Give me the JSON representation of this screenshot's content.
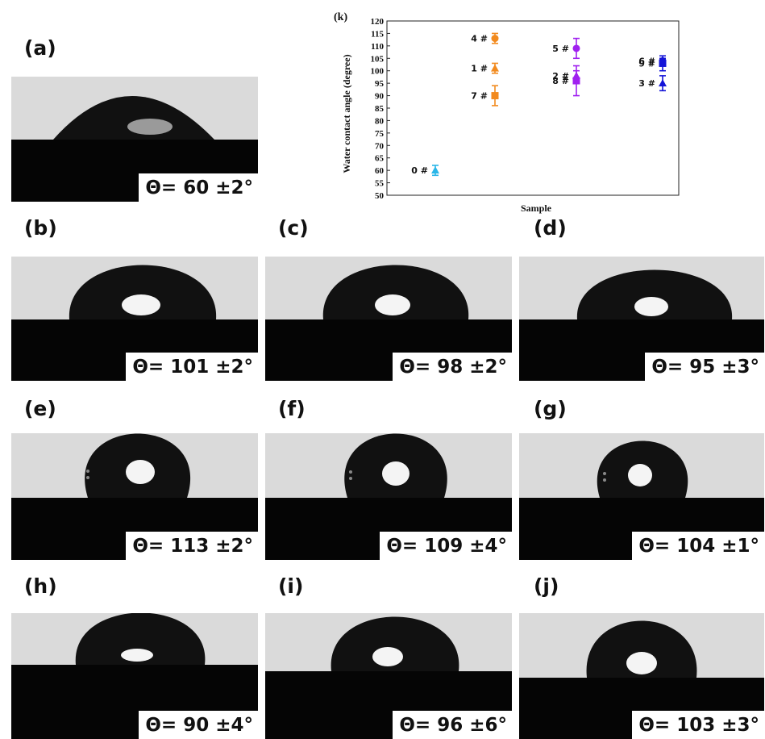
{
  "panels": [
    {
      "id": "a",
      "label": "(a)",
      "angle": "Θ= 60 ±2°",
      "contact_angle": 60
    },
    {
      "id": "b",
      "label": "(b)",
      "angle": "Θ= 101 ±2°",
      "contact_angle": 101
    },
    {
      "id": "c",
      "label": "(c)",
      "angle": "Θ= 98 ±2°",
      "contact_angle": 98
    },
    {
      "id": "d",
      "label": "(d)",
      "angle": "Θ= 95 ±3°",
      "contact_angle": 95
    },
    {
      "id": "e",
      "label": "(e)",
      "angle": "Θ= 113 ±2°",
      "contact_angle": 113
    },
    {
      "id": "f",
      "label": "(f)",
      "angle": "Θ= 109 ±4°",
      "contact_angle": 109
    },
    {
      "id": "g",
      "label": "(g)",
      "angle": "Θ= 104 ±1°",
      "contact_angle": 104
    },
    {
      "id": "h",
      "label": "(h)",
      "angle": "Θ= 90 ±4°",
      "contact_angle": 90
    },
    {
      "id": "i",
      "label": "(i)",
      "angle": "Θ= 96 ±6°",
      "contact_angle": 96
    },
    {
      "id": "j",
      "label": "(j)",
      "angle": "Θ= 103 ±3°",
      "contact_angle": 103
    }
  ],
  "chart_data": {
    "type": "scatter",
    "panel_label": "(k)",
    "title": "",
    "xlabel": "Sample",
    "ylabel": "Water contact angle (degree)",
    "ylim": [
      50,
      120
    ],
    "yticks": [
      50,
      55,
      60,
      65,
      70,
      75,
      80,
      85,
      90,
      95,
      100,
      105,
      110,
      115,
      120
    ],
    "grid": false,
    "points": [
      {
        "label": "0 #",
        "group": 0,
        "y": 60,
        "err": 2,
        "marker": "triangle",
        "color": "#29b6e8"
      },
      {
        "label": "4 #",
        "group": 1,
        "y": 113,
        "err": 2,
        "marker": "circle",
        "color": "#f28a1e"
      },
      {
        "label": "1 #",
        "group": 1,
        "y": 101,
        "err": 2,
        "marker": "triangle",
        "color": "#f28a1e"
      },
      {
        "label": "7 #",
        "group": 1,
        "y": 90,
        "err": 4,
        "marker": "square",
        "color": "#f28a1e"
      },
      {
        "label": "5 #",
        "group": 2,
        "y": 109,
        "err": 4,
        "marker": "circle",
        "color": "#a020f0"
      },
      {
        "label": "2 #",
        "group": 2,
        "y": 98,
        "err": 2,
        "marker": "triangle",
        "color": "#a020f0"
      },
      {
        "label": "8 #",
        "group": 2,
        "y": 96,
        "err": 6,
        "marker": "square",
        "color": "#a020f0"
      },
      {
        "label": "6 #",
        "group": 3,
        "y": 104,
        "err": 1,
        "marker": "circle",
        "color": "#1414d8"
      },
      {
        "label": "9 #",
        "group": 3,
        "y": 103,
        "err": 3,
        "marker": "square",
        "color": "#1414d8"
      },
      {
        "label": "3 #",
        "group": 3,
        "y": 95,
        "err": 3,
        "marker": "triangle",
        "color": "#1414d8"
      }
    ]
  }
}
